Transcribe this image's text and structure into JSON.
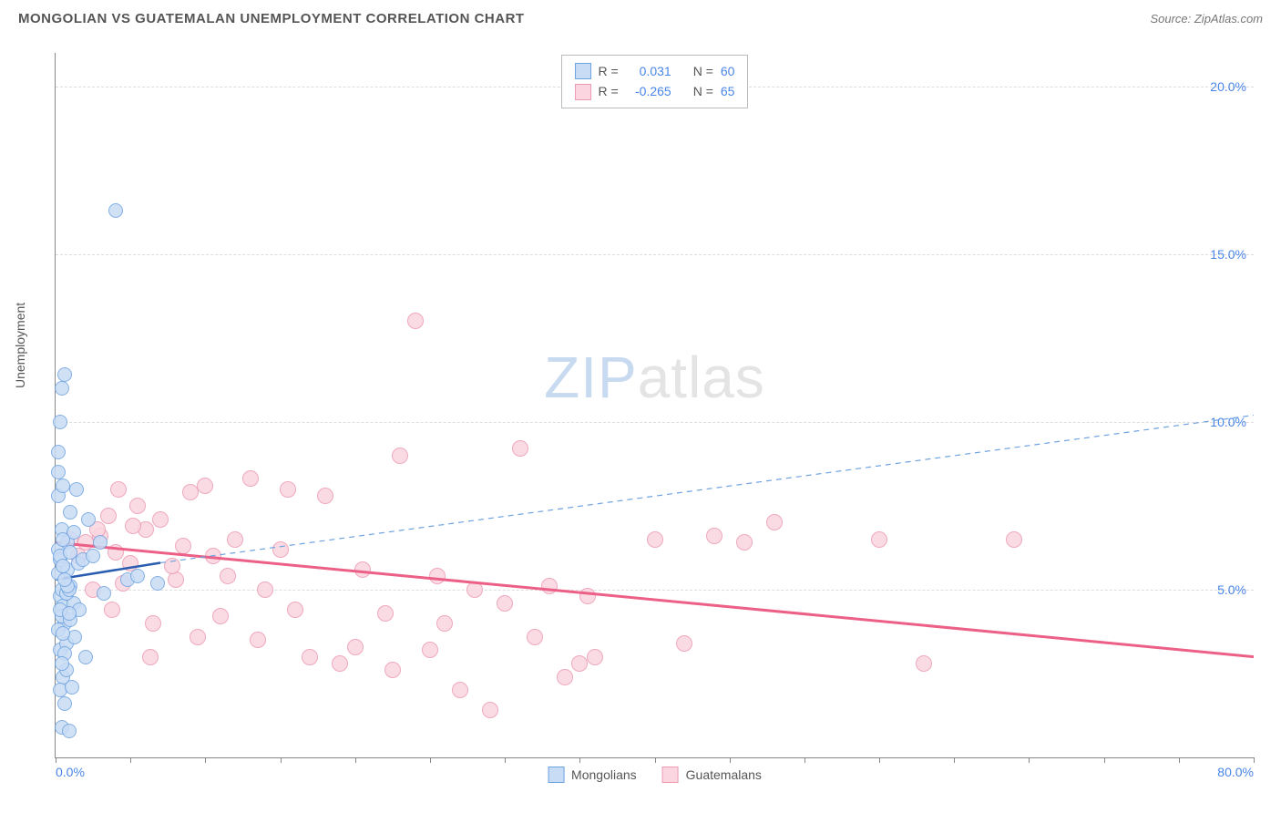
{
  "title": "MONGOLIAN VS GUATEMALAN UNEMPLOYMENT CORRELATION CHART",
  "source_label": "Source: ZipAtlas.com",
  "ylabel": "Unemployment",
  "watermark": {
    "part1": "ZIP",
    "part2": "atlas"
  },
  "axes": {
    "xmin": 0,
    "xmax": 80,
    "ymin": 0,
    "ymax": 21,
    "xtick_left": "0.0%",
    "xtick_right": "80.0%",
    "xtick_positions": [
      0,
      5,
      10,
      15,
      20,
      25,
      30,
      35,
      40,
      45,
      50,
      55,
      60,
      65,
      70,
      75,
      80
    ],
    "yticks": [
      {
        "v": 5,
        "label": "5.0%"
      },
      {
        "v": 10,
        "label": "10.0%"
      },
      {
        "v": 15,
        "label": "15.0%"
      },
      {
        "v": 20,
        "label": "20.0%"
      }
    ],
    "tick_color": "#4a86e8",
    "grid_color": "#dddddd"
  },
  "series": {
    "mongolians": {
      "label": "Mongolians",
      "point_fill": "#c8dcf5",
      "point_stroke": "#6fa3e0",
      "point_radius": 8,
      "R_label": "R =",
      "R_value": "0.031",
      "N_label": "N =",
      "N_value": "60",
      "trend": {
        "color": "#2a5db0",
        "width": 2.5,
        "dash": "none",
        "x1": 0,
        "y1": 5.3,
        "x2": 7,
        "y2": 5.8
      },
      "trend_ext": {
        "color": "#6fa3e0",
        "width": 1.2,
        "dash": "6,5",
        "x1": 7,
        "y1": 5.8,
        "x2": 80,
        "y2": 10.2
      },
      "points": [
        [
          0.2,
          5.5
        ],
        [
          0.3,
          4.8
        ],
        [
          0.4,
          5.0
        ],
        [
          0.5,
          4.5
        ],
        [
          0.2,
          6.2
        ],
        [
          0.8,
          5.6
        ],
        [
          0.3,
          3.2
        ],
        [
          0.6,
          4.0
        ],
        [
          1.0,
          5.1
        ],
        [
          1.2,
          4.6
        ],
        [
          0.4,
          6.8
        ],
        [
          0.2,
          8.5
        ],
        [
          0.7,
          3.4
        ],
        [
          1.5,
          5.8
        ],
        [
          0.5,
          2.4
        ],
        [
          0.3,
          2.0
        ],
        [
          1.8,
          5.9
        ],
        [
          2.5,
          6.0
        ],
        [
          3.2,
          4.9
        ],
        [
          4.8,
          5.3
        ],
        [
          0.3,
          10.0
        ],
        [
          0.4,
          11.0
        ],
        [
          0.6,
          11.4
        ],
        [
          0.2,
          9.1
        ],
        [
          1.0,
          7.3
        ],
        [
          1.3,
          3.6
        ],
        [
          2.0,
          3.0
        ],
        [
          5.5,
          5.4
        ],
        [
          6.8,
          5.2
        ],
        [
          0.6,
          1.6
        ],
        [
          0.4,
          0.9
        ],
        [
          0.9,
          0.8
        ],
        [
          1.1,
          2.1
        ],
        [
          0.2,
          7.8
        ],
        [
          0.5,
          8.1
        ],
        [
          1.4,
          8.0
        ],
        [
          2.2,
          7.1
        ],
        [
          3.0,
          6.4
        ],
        [
          0.3,
          5.9
        ],
        [
          0.8,
          6.4
        ],
        [
          0.4,
          4.2
        ],
        [
          0.7,
          4.9
        ],
        [
          1.0,
          4.1
        ],
        [
          1.6,
          4.4
        ],
        [
          0.2,
          3.8
        ],
        [
          0.6,
          3.1
        ],
        [
          4.0,
          16.3
        ],
        [
          0.3,
          6.0
        ],
        [
          0.9,
          5.0
        ],
        [
          0.5,
          5.7
        ],
        [
          0.8,
          5.1
        ],
        [
          0.3,
          4.4
        ],
        [
          0.5,
          3.7
        ],
        [
          1.0,
          6.1
        ],
        [
          1.2,
          6.7
        ],
        [
          0.7,
          2.6
        ],
        [
          0.4,
          2.8
        ],
        [
          0.6,
          5.3
        ],
        [
          0.9,
          4.3
        ],
        [
          0.5,
          6.5
        ]
      ]
    },
    "guatemalans": {
      "label": "Guatemalans",
      "point_fill": "#fbd5df",
      "point_stroke": "#ec9ab2",
      "point_radius": 9,
      "R_label": "R =",
      "R_value": "-0.265",
      "N_label": "N =",
      "N_value": "65",
      "trend": {
        "color": "#ec5f86",
        "width": 3,
        "dash": "none",
        "x1": 0,
        "y1": 6.4,
        "x2": 80,
        "y2": 3.0
      },
      "points": [
        [
          2,
          6.4
        ],
        [
          3,
          6.6
        ],
        [
          4,
          6.1
        ],
        [
          5,
          5.8
        ],
        [
          3.5,
          7.2
        ],
        [
          5.5,
          7.5
        ],
        [
          6,
          6.8
        ],
        [
          7,
          7.1
        ],
        [
          8,
          5.3
        ],
        [
          9,
          7.9
        ],
        [
          10,
          8.1
        ],
        [
          10.5,
          6.0
        ],
        [
          11,
          4.2
        ],
        [
          12,
          6.5
        ],
        [
          13,
          8.3
        ],
        [
          14,
          5.0
        ],
        [
          15,
          6.2
        ],
        [
          15.5,
          8.0
        ],
        [
          16,
          4.4
        ],
        [
          17,
          3.0
        ],
        [
          18,
          7.8
        ],
        [
          19,
          2.8
        ],
        [
          20,
          3.3
        ],
        [
          20.5,
          5.6
        ],
        [
          22,
          4.3
        ],
        [
          22.5,
          2.6
        ],
        [
          23,
          9.0
        ],
        [
          24,
          13.0
        ],
        [
          25,
          3.2
        ],
        [
          25.5,
          5.4
        ],
        [
          26,
          4.0
        ],
        [
          27,
          2.0
        ],
        [
          28,
          5.0
        ],
        [
          29,
          1.4
        ],
        [
          30,
          4.6
        ],
        [
          31,
          9.2
        ],
        [
          32,
          3.6
        ],
        [
          33,
          5.1
        ],
        [
          34,
          2.4
        ],
        [
          35,
          2.8
        ],
        [
          35.5,
          4.8
        ],
        [
          36,
          3.0
        ],
        [
          40,
          6.5
        ],
        [
          42,
          3.4
        ],
        [
          44,
          6.6
        ],
        [
          46,
          6.4
        ],
        [
          48,
          7.0
        ],
        [
          55,
          6.5
        ],
        [
          58,
          2.8
        ],
        [
          64,
          6.5
        ],
        [
          4.5,
          5.2
        ],
        [
          6.5,
          4.0
        ],
        [
          8.5,
          6.3
        ],
        [
          9.5,
          3.6
        ],
        [
          11.5,
          5.4
        ],
        [
          13.5,
          3.5
        ],
        [
          5.2,
          6.9
        ],
        [
          7.8,
          5.7
        ],
        [
          2.5,
          5.0
        ],
        [
          3.8,
          4.4
        ],
        [
          4.2,
          8.0
        ],
        [
          6.3,
          3.0
        ],
        [
          1.5,
          6.0
        ],
        [
          2.8,
          6.8
        ],
        [
          1.0,
          6.5
        ]
      ]
    }
  }
}
